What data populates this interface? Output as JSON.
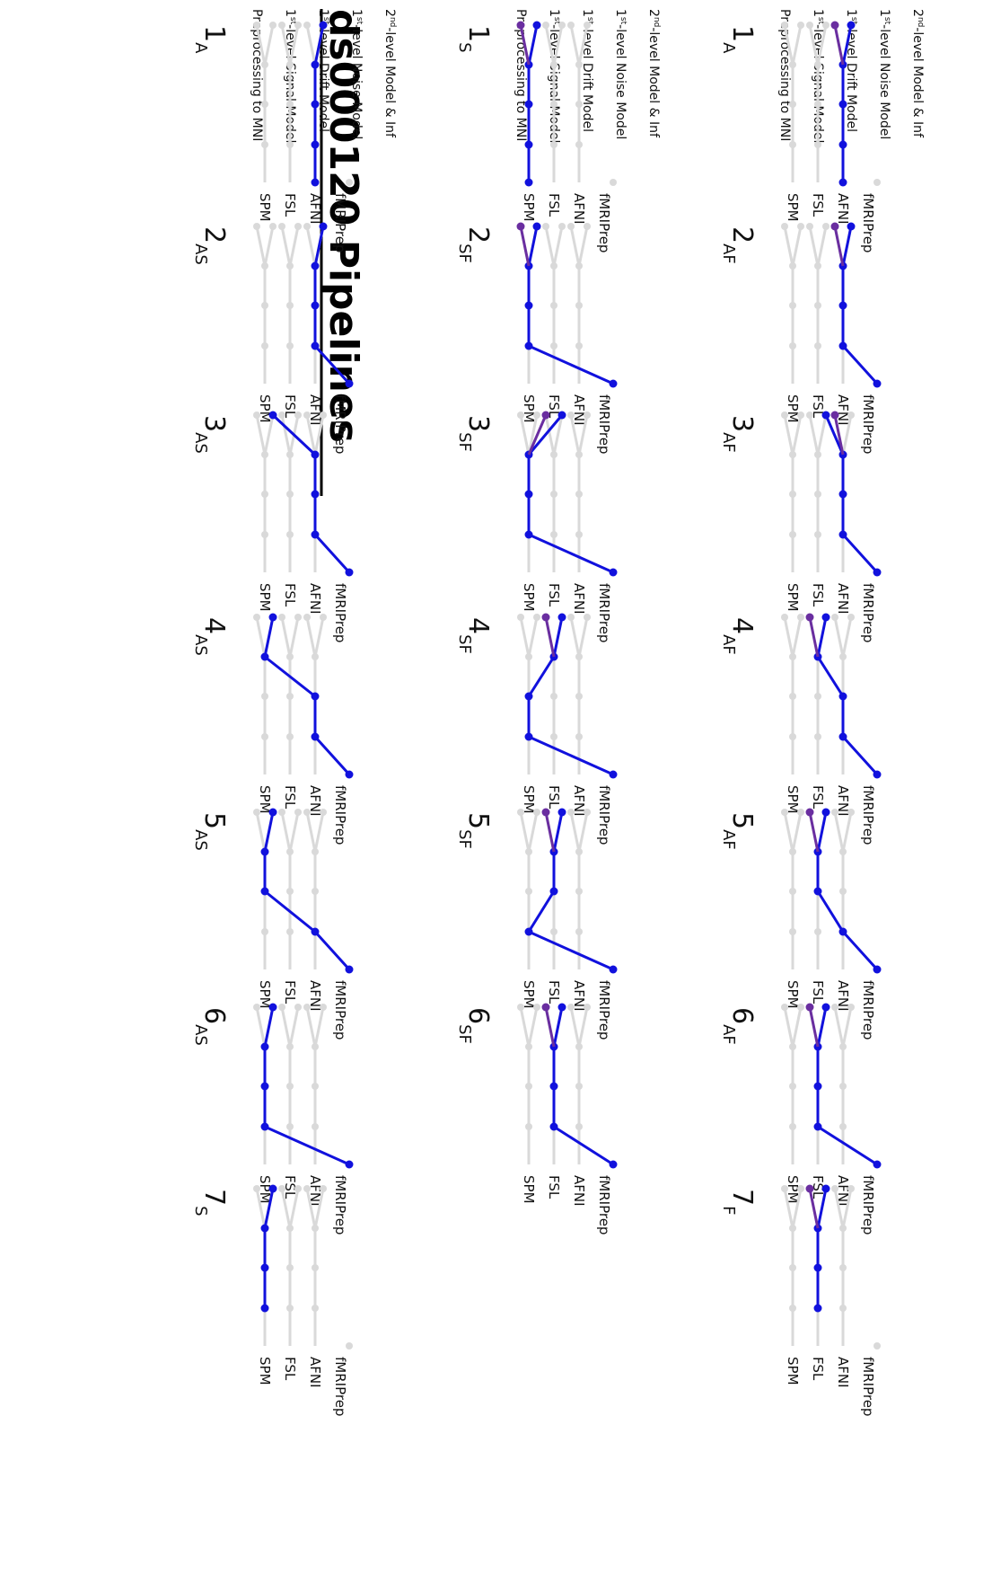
{
  "title": "ds000120 Pipelines",
  "stage_labels": [
    "Preprocessing to MNI",
    "1st-level Signal Model",
    "1st-level Drift Model",
    "1st-level Noise Model",
    "2nd-level Model & Inf"
  ],
  "stage_label_parts": [
    {
      "pre": "",
      "sup": "",
      "post": "Preprocessing to MNI"
    },
    {
      "pre": "1",
      "sup": "st",
      "post": "-level Signal Model"
    },
    {
      "pre": "1",
      "sup": "st",
      "post": "-level Drift Model"
    },
    {
      "pre": "1",
      "sup": "st",
      "post": "-level Noise Model"
    },
    {
      "pre": "2",
      "sup": "nd",
      "post": "-level Model & Inf"
    }
  ],
  "software_labels": [
    "fMRIPrep",
    "AFNI",
    "FSL",
    "SPM"
  ],
  "colors": {
    "path": "#1111dd",
    "final": "#6a2ea0",
    "inactive": "#d9d9d9",
    "text": "#111111"
  },
  "rows": [
    {
      "panels": [
        {
          "num": "1",
          "sub": "A",
          "route": [
            1,
            1,
            1,
            1,
            1
          ],
          "final": 1,
          "alt": 2
        },
        {
          "num": "2",
          "sub": "AF",
          "route": [
            0,
            1,
            1,
            1,
            1
          ],
          "final": 1,
          "alt": 2
        },
        {
          "num": "3",
          "sub": "AF",
          "route": [
            0,
            1,
            1,
            1,
            2
          ],
          "final": 1,
          "alt": 3
        },
        {
          "num": "4",
          "sub": "AF",
          "route": [
            0,
            1,
            1,
            2,
            2
          ],
          "final": 2,
          "alt": 3
        },
        {
          "num": "5",
          "sub": "AF",
          "route": [
            0,
            1,
            2,
            2,
            2
          ],
          "final": 2,
          "alt": 3
        },
        {
          "num": "6",
          "sub": "AF",
          "route": [
            0,
            2,
            2,
            2,
            2
          ],
          "final": 2,
          "alt": 3
        },
        {
          "num": "7",
          "sub": "F",
          "route": [
            2,
            2,
            2,
            2,
            2
          ],
          "final": 2,
          "alt": 3,
          "inactive_pre": true
        }
      ]
    },
    {
      "panels": [
        {
          "num": "1",
          "sub": "S",
          "route": [
            3,
            3,
            3,
            3,
            3
          ],
          "final": 3,
          "alt": 4
        },
        {
          "num": "2",
          "sub": "SF",
          "route": [
            0,
            3,
            3,
            3,
            3
          ],
          "final": 3,
          "alt": 4
        },
        {
          "num": "3",
          "sub": "SF",
          "route": [
            0,
            3,
            3,
            3,
            2
          ],
          "final": 2,
          "alt": 3
        },
        {
          "num": "4",
          "sub": "SF",
          "route": [
            0,
            3,
            3,
            2,
            2
          ],
          "final": 2,
          "alt": 3
        },
        {
          "num": "5",
          "sub": "SF",
          "route": [
            0,
            3,
            2,
            2,
            2
          ],
          "final": 2,
          "alt": 3
        },
        {
          "num": "6",
          "sub": "SF",
          "route": [
            0,
            2,
            2,
            2,
            2
          ],
          "final": 2,
          "alt": 3
        }
      ]
    },
    {
      "panels": [
        {
          "num": "1",
          "sub": "A",
          "route": [
            1,
            1,
            1,
            1,
            1
          ],
          "final": 1
        },
        {
          "num": "2",
          "sub": "AS",
          "route": [
            0,
            1,
            1,
            1,
            1
          ],
          "final": 1
        },
        {
          "num": "3",
          "sub": "AS",
          "route": [
            0,
            1,
            1,
            1,
            3
          ],
          "final": 3
        },
        {
          "num": "4",
          "sub": "AS",
          "route": [
            0,
            1,
            1,
            3,
            3
          ],
          "final": 3
        },
        {
          "num": "5",
          "sub": "AS",
          "route": [
            0,
            1,
            3,
            3,
            3
          ],
          "final": 3
        },
        {
          "num": "6",
          "sub": "AS",
          "route": [
            0,
            3,
            3,
            3,
            3
          ],
          "final": 3
        },
        {
          "num": "7",
          "sub": "S",
          "route": [
            3,
            3,
            3,
            3,
            3
          ],
          "final": 3,
          "inactive_pre": true
        }
      ]
    }
  ]
}
